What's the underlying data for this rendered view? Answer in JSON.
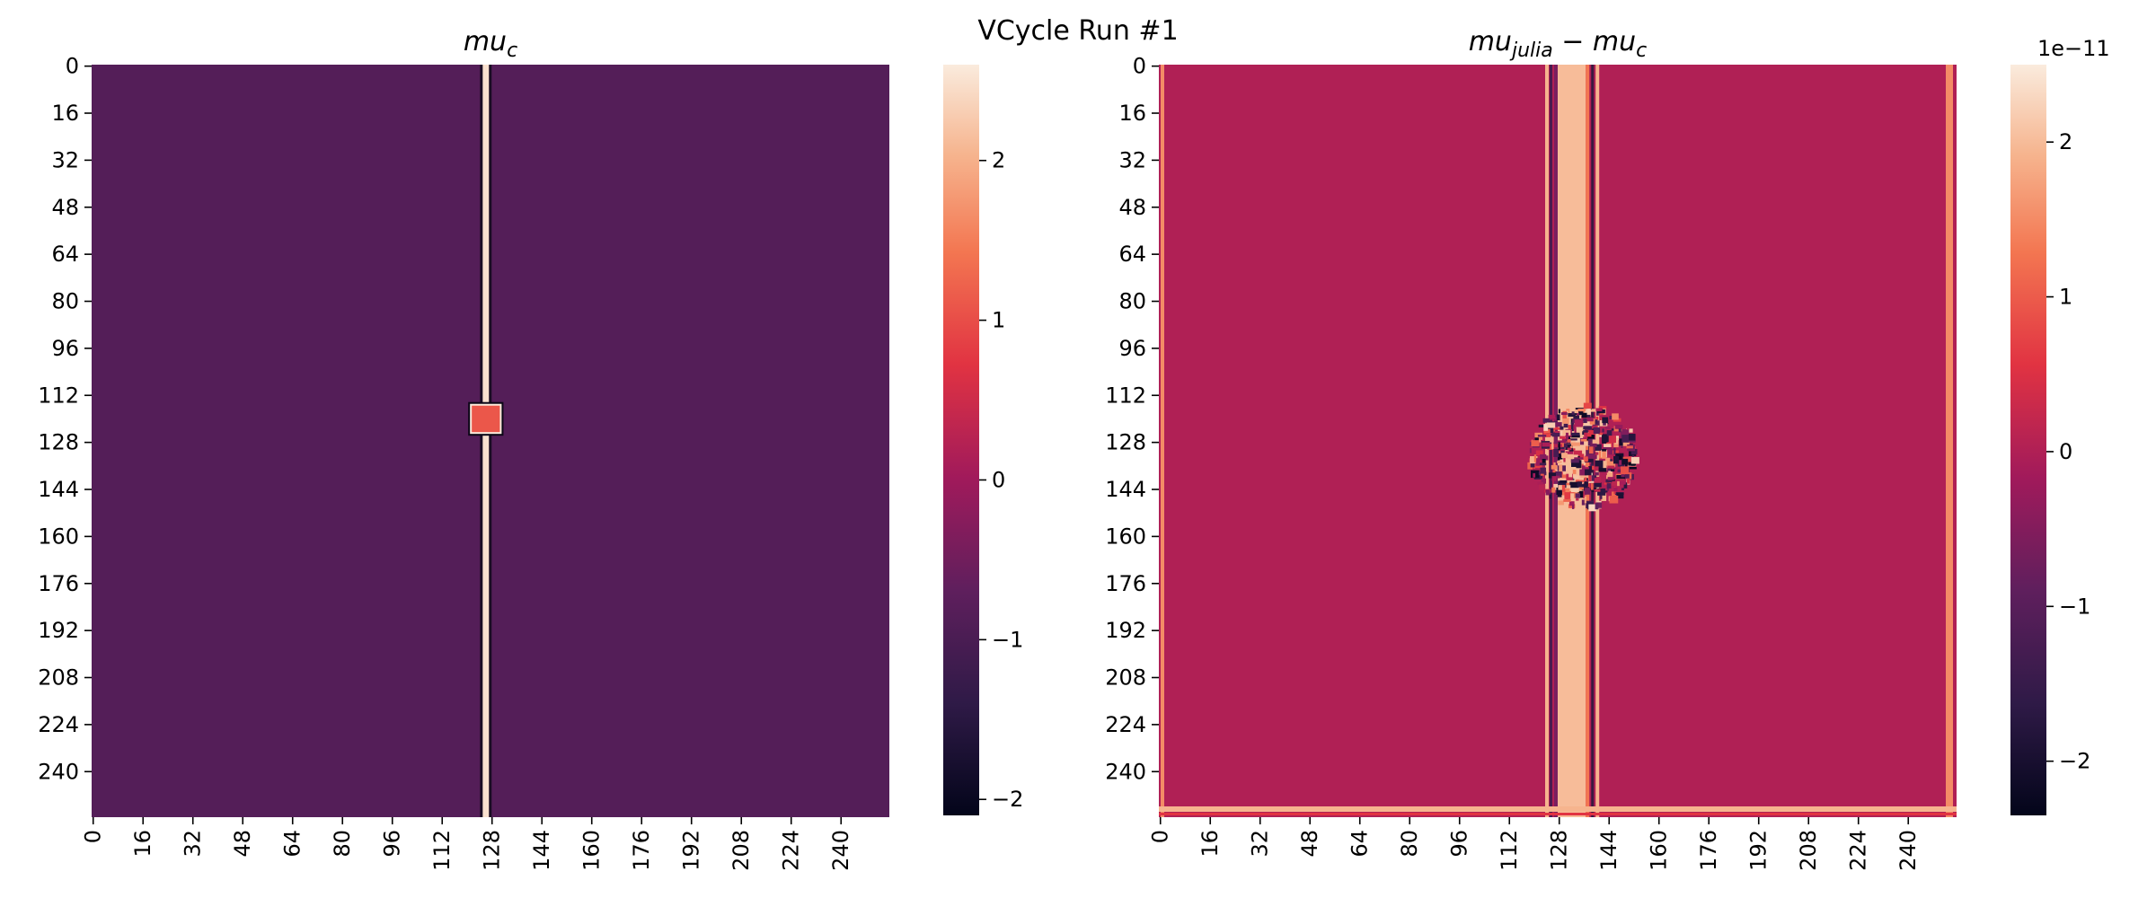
{
  "figure": {
    "title": "VCycle Run #1"
  },
  "chart_data": [
    {
      "type": "heatmap",
      "name": "left-heatmap",
      "title": {
        "base": "mu",
        "sub": "c",
        "rest": ""
      },
      "grid_size": [
        256,
        256
      ],
      "x_ticks": [
        "0",
        "16",
        "32",
        "48",
        "64",
        "80",
        "96",
        "112",
        "128",
        "144",
        "160",
        "176",
        "192",
        "208",
        "224",
        "240"
      ],
      "y_ticks": [
        "0",
        "16",
        "32",
        "48",
        "64",
        "80",
        "96",
        "112",
        "128",
        "144",
        "160",
        "176",
        "192",
        "208",
        "224",
        "240"
      ],
      "background_value": -0.85,
      "features": [
        {
          "kind": "vertical-line",
          "x_range": [
            125.5,
            127.5
          ],
          "value": 2.5
        },
        {
          "kind": "square",
          "x_range": [
            122,
            131
          ],
          "y_range": [
            116,
            125
          ],
          "value": 1.1
        }
      ],
      "colorbar": {
        "ticks": [
          2,
          1,
          0,
          -1,
          -2
        ],
        "range": [
          -2.1,
          2.6
        ],
        "offset_text": ""
      },
      "grid": false
    },
    {
      "type": "heatmap",
      "name": "right-heatmap",
      "title": {
        "base": "mu",
        "sub": "julia",
        "rest": " − mu",
        "sub2": "c"
      },
      "grid_size": [
        256,
        256
      ],
      "x_ticks": [
        "0",
        "16",
        "32",
        "48",
        "64",
        "80",
        "96",
        "112",
        "128",
        "144",
        "160",
        "176",
        "192",
        "208",
        "224",
        "240"
      ],
      "y_ticks": [
        "0",
        "16",
        "32",
        "48",
        "64",
        "80",
        "96",
        "112",
        "128",
        "144",
        "160",
        "176",
        "192",
        "208",
        "224",
        "240"
      ],
      "background_value": 0.0,
      "features": [
        {
          "kind": "vertical-band",
          "x_range": [
            128,
            137
          ],
          "value": 2.0
        },
        {
          "kind": "border",
          "value": 1.5
        },
        {
          "kind": "noise-cluster",
          "x_range": [
            118,
            153
          ],
          "y_range": [
            115,
            150
          ]
        }
      ],
      "colorbar": {
        "ticks": [
          2,
          1,
          0,
          -1,
          -2
        ],
        "range": [
          -2.35,
          2.5
        ],
        "offset_text": "1e−11"
      },
      "grid": false
    }
  ]
}
